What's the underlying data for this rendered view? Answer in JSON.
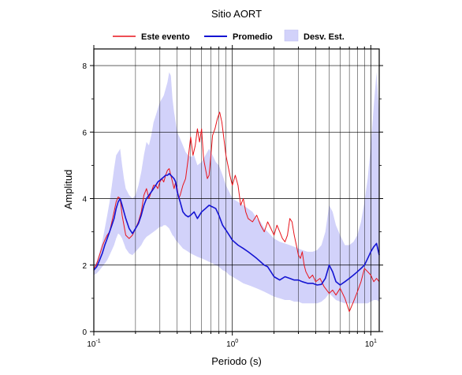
{
  "chart_data": {
    "type": "line",
    "title": "Sitio AORT",
    "xlabel": "Periodo (s)",
    "ylabel": "Amplitud",
    "x_scale": "log",
    "xlim": [
      0.1,
      11.5
    ],
    "ylim": [
      0,
      8.5
    ],
    "x_ticks": [
      {
        "value": 0.1,
        "base": "10",
        "exp": "-1"
      },
      {
        "value": 1,
        "base": "10",
        "exp": "0"
      },
      {
        "value": 10,
        "base": "10",
        "exp": "1"
      }
    ],
    "y_ticks": [
      {
        "value": 0,
        "label": "0"
      },
      {
        "value": 2,
        "label": "2"
      },
      {
        "value": 4,
        "label": "4"
      },
      {
        "value": 6,
        "label": "6"
      },
      {
        "value": 8,
        "label": "8"
      }
    ],
    "grid": true,
    "legend_position": "top",
    "legend": [
      {
        "label": "Este evento",
        "kind": "line",
        "color": "#e8141c"
      },
      {
        "label": "Promedio",
        "kind": "line",
        "color": "#1414d2"
      },
      {
        "label": "Desv. Est.",
        "kind": "band",
        "color": "#d2d2fa"
      }
    ],
    "series": [
      {
        "name": "Este evento",
        "color": "#e8141c",
        "x": [
          0.1,
          0.104,
          0.108,
          0.112,
          0.116,
          0.12,
          0.125,
          0.13,
          0.135,
          0.14,
          0.145,
          0.15,
          0.155,
          0.16,
          0.17,
          0.18,
          0.19,
          0.2,
          0.21,
          0.22,
          0.23,
          0.24,
          0.25,
          0.26,
          0.27,
          0.28,
          0.29,
          0.3,
          0.31,
          0.32,
          0.33,
          0.34,
          0.35,
          0.36,
          0.37,
          0.38,
          0.39,
          0.4,
          0.41,
          0.42,
          0.44,
          0.46,
          0.48,
          0.5,
          0.52,
          0.54,
          0.56,
          0.58,
          0.6,
          0.62,
          0.64,
          0.66,
          0.68,
          0.7,
          0.72,
          0.75,
          0.78,
          0.81,
          0.84,
          0.87,
          0.9,
          0.93,
          0.96,
          1.0,
          1.05,
          1.1,
          1.15,
          1.2,
          1.25,
          1.3,
          1.4,
          1.5,
          1.6,
          1.7,
          1.8,
          1.9,
          2.0,
          2.1,
          2.2,
          2.3,
          2.4,
          2.5,
          2.6,
          2.7,
          2.8,
          2.9,
          3.0,
          3.1,
          3.2,
          3.3,
          3.4,
          3.6,
          3.8,
          4.0,
          4.3,
          4.6,
          5.0,
          5.3,
          5.6,
          6.0,
          6.5,
          7.0,
          7.5,
          8.0,
          8.5,
          9.0,
          9.5,
          10.0,
          10.5,
          11.0,
          11.5
        ],
        "values": [
          1.9,
          2.0,
          2.2,
          2.4,
          2.6,
          2.75,
          2.9,
          3.0,
          3.3,
          3.6,
          3.9,
          4.05,
          4.0,
          3.5,
          2.9,
          2.8,
          2.9,
          3.1,
          3.3,
          3.6,
          4.1,
          4.3,
          4.0,
          4.2,
          4.4,
          4.4,
          4.3,
          4.5,
          4.6,
          4.5,
          4.7,
          4.85,
          4.9,
          4.7,
          4.5,
          4.3,
          4.5,
          4.3,
          4.0,
          4.1,
          4.4,
          4.6,
          5.2,
          5.85,
          5.3,
          5.6,
          6.1,
          5.7,
          6.1,
          5.2,
          4.9,
          4.6,
          4.7,
          5.3,
          5.9,
          6.1,
          6.4,
          6.6,
          6.3,
          5.8,
          5.3,
          5.0,
          4.7,
          4.4,
          4.7,
          4.4,
          3.8,
          4.0,
          3.6,
          3.4,
          3.3,
          3.5,
          3.2,
          3.0,
          3.3,
          3.1,
          2.9,
          3.2,
          3.0,
          2.8,
          2.7,
          2.9,
          3.4,
          3.3,
          2.9,
          2.6,
          2.3,
          2.2,
          2.4,
          2.0,
          1.8,
          1.6,
          1.7,
          1.5,
          1.6,
          1.35,
          1.15,
          1.25,
          1.1,
          1.3,
          1.0,
          0.6,
          0.9,
          1.2,
          1.5,
          1.9,
          1.8,
          1.7,
          1.5,
          1.6,
          1.5
        ]
      },
      {
        "name": "Promedio",
        "color": "#1414d2",
        "x": [
          0.1,
          0.105,
          0.11,
          0.115,
          0.12,
          0.125,
          0.13,
          0.135,
          0.14,
          0.145,
          0.15,
          0.155,
          0.16,
          0.165,
          0.17,
          0.18,
          0.19,
          0.2,
          0.21,
          0.22,
          0.23,
          0.24,
          0.25,
          0.26,
          0.27,
          0.28,
          0.29,
          0.3,
          0.31,
          0.32,
          0.33,
          0.34,
          0.35,
          0.36,
          0.37,
          0.38,
          0.39,
          0.4,
          0.42,
          0.44,
          0.46,
          0.48,
          0.5,
          0.53,
          0.56,
          0.6,
          0.64,
          0.68,
          0.72,
          0.76,
          0.8,
          0.85,
          0.9,
          0.95,
          1.0,
          1.1,
          1.2,
          1.3,
          1.4,
          1.5,
          1.6,
          1.7,
          1.8,
          1.9,
          2.0,
          2.2,
          2.4,
          2.6,
          2.8,
          3.0,
          3.2,
          3.5,
          3.8,
          4.1,
          4.4,
          4.7,
          5.0,
          5.3,
          5.6,
          6.0,
          6.5,
          7.0,
          7.5,
          8.0,
          8.5,
          9.0,
          9.5,
          10.0,
          10.5,
          11.0,
          11.5
        ],
        "values": [
          1.85,
          1.95,
          2.15,
          2.35,
          2.6,
          2.8,
          3.0,
          3.2,
          3.4,
          3.7,
          3.9,
          4.0,
          3.8,
          3.6,
          3.4,
          3.1,
          2.95,
          3.1,
          3.25,
          3.5,
          3.8,
          4.0,
          4.1,
          4.2,
          4.3,
          4.4,
          4.5,
          4.55,
          4.6,
          4.65,
          4.7,
          4.7,
          4.75,
          4.7,
          4.65,
          4.6,
          4.5,
          4.2,
          3.9,
          3.6,
          3.5,
          3.45,
          3.5,
          3.6,
          3.4,
          3.6,
          3.7,
          3.8,
          3.75,
          3.7,
          3.5,
          3.2,
          3.05,
          2.9,
          2.75,
          2.6,
          2.5,
          2.4,
          2.3,
          2.2,
          2.1,
          2.0,
          1.95,
          1.8,
          1.65,
          1.55,
          1.65,
          1.6,
          1.55,
          1.55,
          1.5,
          1.45,
          1.45,
          1.4,
          1.42,
          1.6,
          2.0,
          1.8,
          1.5,
          1.4,
          1.5,
          1.6,
          1.7,
          1.8,
          1.9,
          2.0,
          2.2,
          2.4,
          2.55,
          2.65,
          2.3
        ]
      }
    ],
    "band": {
      "name": "Desv. Est.",
      "color": "#d2d2fa",
      "x": [
        0.1,
        0.105,
        0.11,
        0.115,
        0.12,
        0.125,
        0.13,
        0.135,
        0.14,
        0.145,
        0.15,
        0.155,
        0.16,
        0.165,
        0.17,
        0.18,
        0.19,
        0.2,
        0.21,
        0.22,
        0.23,
        0.24,
        0.25,
        0.26,
        0.27,
        0.28,
        0.29,
        0.3,
        0.31,
        0.32,
        0.33,
        0.34,
        0.35,
        0.36,
        0.37,
        0.38,
        0.39,
        0.4,
        0.42,
        0.44,
        0.46,
        0.48,
        0.5,
        0.53,
        0.56,
        0.6,
        0.64,
        0.68,
        0.72,
        0.76,
        0.8,
        0.85,
        0.9,
        0.95,
        1.0,
        1.1,
        1.2,
        1.3,
        1.4,
        1.5,
        1.6,
        1.7,
        1.8,
        1.9,
        2.0,
        2.2,
        2.4,
        2.6,
        2.8,
        3.0,
        3.2,
        3.5,
        3.8,
        4.1,
        4.4,
        4.7,
        5.0,
        5.3,
        5.6,
        6.0,
        6.5,
        7.0,
        7.5,
        8.0,
        8.5,
        9.0,
        9.5,
        10.0,
        10.5,
        11.0,
        11.5
      ],
      "upper": [
        2.0,
        2.1,
        2.4,
        2.7,
        3.1,
        3.5,
        3.9,
        4.4,
        4.9,
        5.3,
        5.4,
        5.5,
        5.0,
        4.6,
        4.3,
        4.1,
        4.0,
        4.1,
        4.4,
        4.8,
        5.3,
        5.7,
        5.6,
        5.9,
        6.3,
        6.5,
        6.7,
        6.9,
        7.0,
        7.1,
        7.3,
        7.5,
        7.8,
        7.7,
        7.0,
        6.6,
        6.3,
        6.0,
        5.8,
        5.6,
        5.4,
        5.3,
        5.25,
        5.3,
        5.0,
        5.1,
        5.3,
        5.5,
        5.3,
        5.1,
        5.0,
        4.7,
        4.4,
        4.2,
        4.0,
        3.9,
        3.8,
        3.7,
        3.6,
        3.4,
        3.3,
        3.1,
        3.0,
        2.9,
        2.8,
        2.7,
        2.65,
        2.6,
        2.55,
        2.5,
        2.45,
        2.4,
        2.4,
        2.45,
        2.6,
        3.0,
        3.8,
        3.6,
        3.2,
        2.9,
        2.6,
        2.6,
        2.7,
        2.9,
        3.3,
        3.9,
        4.6,
        5.6,
        6.8,
        7.8,
        6.5
      ],
      "lower": [
        1.7,
        1.75,
        1.85,
        1.95,
        2.05,
        2.15,
        2.3,
        2.45,
        2.6,
        2.8,
        2.95,
        2.9,
        2.8,
        2.65,
        2.5,
        2.35,
        2.3,
        2.4,
        2.5,
        2.6,
        2.75,
        2.85,
        2.9,
        2.95,
        3.0,
        3.05,
        3.1,
        3.15,
        3.15,
        3.2,
        3.2,
        3.15,
        3.1,
        3.0,
        2.9,
        2.85,
        2.75,
        2.7,
        2.6,
        2.5,
        2.45,
        2.4,
        2.35,
        2.3,
        2.25,
        2.2,
        2.15,
        2.1,
        2.05,
        2.0,
        1.95,
        1.85,
        1.8,
        1.7,
        1.65,
        1.55,
        1.45,
        1.4,
        1.35,
        1.3,
        1.25,
        1.2,
        1.15,
        1.1,
        1.05,
        1.0,
        0.95,
        0.95,
        0.9,
        0.9,
        0.85,
        0.85,
        0.85,
        0.85,
        0.9,
        1.0,
        1.15,
        1.05,
        0.95,
        0.9,
        0.85,
        0.85,
        0.85,
        0.85,
        0.85,
        0.85,
        0.85,
        0.9,
        0.95,
        0.95,
        0.9
      ]
    }
  }
}
